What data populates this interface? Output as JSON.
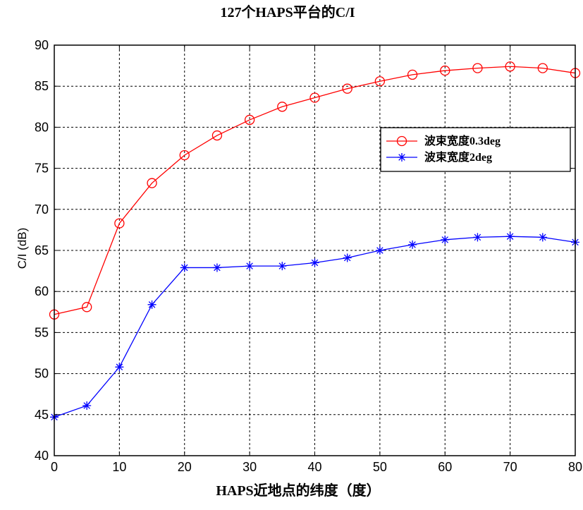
{
  "chart_data": {
    "type": "line",
    "title": "127个HAPS平台的C/I",
    "xlabel": "HAPS近地点的纬度（度）",
    "ylabel": "C/I (dB)",
    "xlim": [
      0,
      80
    ],
    "ylim": [
      40,
      90
    ],
    "xticks": [
      0,
      10,
      20,
      30,
      40,
      50,
      60,
      70,
      80
    ],
    "yticks": [
      40,
      45,
      50,
      55,
      60,
      65,
      70,
      75,
      80,
      85,
      90
    ],
    "grid": true,
    "legend_position": "right",
    "x": [
      0,
      5,
      10,
      15,
      20,
      25,
      30,
      35,
      40,
      45,
      50,
      55,
      60,
      65,
      70,
      75,
      80
    ],
    "series": [
      {
        "name": "波束宽度0.3deg",
        "color": "#ff0000",
        "marker": "circle",
        "values": [
          57.2,
          58.1,
          68.3,
          73.2,
          76.6,
          79.0,
          80.9,
          82.5,
          83.6,
          84.7,
          85.6,
          86.4,
          86.9,
          87.2,
          87.4,
          87.2,
          86.6
        ]
      },
      {
        "name": "波束宽度2deg",
        "color": "#0000ff",
        "marker": "star",
        "values": [
          44.7,
          46.1,
          50.8,
          58.4,
          62.9,
          62.9,
          63.1,
          63.1,
          63.5,
          64.1,
          65.0,
          65.7,
          66.3,
          66.6,
          66.7,
          66.6,
          66.0
        ]
      }
    ]
  }
}
